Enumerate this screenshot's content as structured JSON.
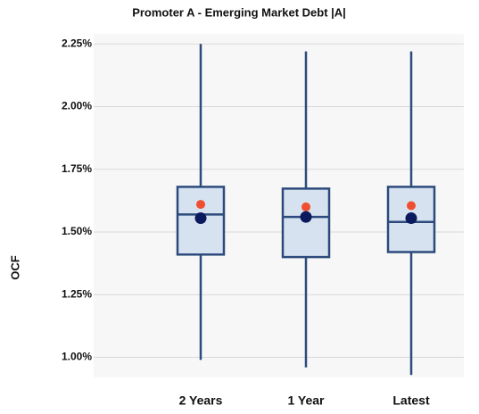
{
  "chart_data": {
    "type": "box",
    "title": "Promoter A - Emerging Market Debt |A|",
    "y_label": "OCF",
    "categories": [
      "2 Years",
      "1 Year",
      "Latest"
    ],
    "boxes": [
      {
        "min": 0.99,
        "q1": 1.41,
        "median": 1.57,
        "q3": 1.68,
        "max": 2.25,
        "mean": 1.555,
        "point": 1.61
      },
      {
        "min": 0.96,
        "q1": 1.4,
        "median": 1.56,
        "q3": 1.673,
        "max": 2.22,
        "mean": 1.56,
        "point": 1.6
      },
      {
        "min": 0.93,
        "q1": 1.42,
        "median": 1.54,
        "q3": 1.68,
        "max": 2.22,
        "mean": 1.555,
        "point": 1.605
      }
    ],
    "box_color": "#d6e2ef",
    "line_color": "#2c4a7c",
    "mean_color": "#0b1a5c",
    "point_color": "#f04e30",
    "ylim": [
      0.92,
      2.29
    ],
    "yticks": [
      {
        "value": 1.0,
        "label": "1.00%"
      },
      {
        "value": 1.25,
        "label": "1.25%"
      },
      {
        "value": 1.5,
        "label": "1.50%"
      },
      {
        "value": 1.75,
        "label": "1.75%"
      },
      {
        "value": 2.0,
        "label": "2.00%"
      },
      {
        "value": 2.25,
        "label": "2.25%"
      }
    ],
    "grid": true
  }
}
